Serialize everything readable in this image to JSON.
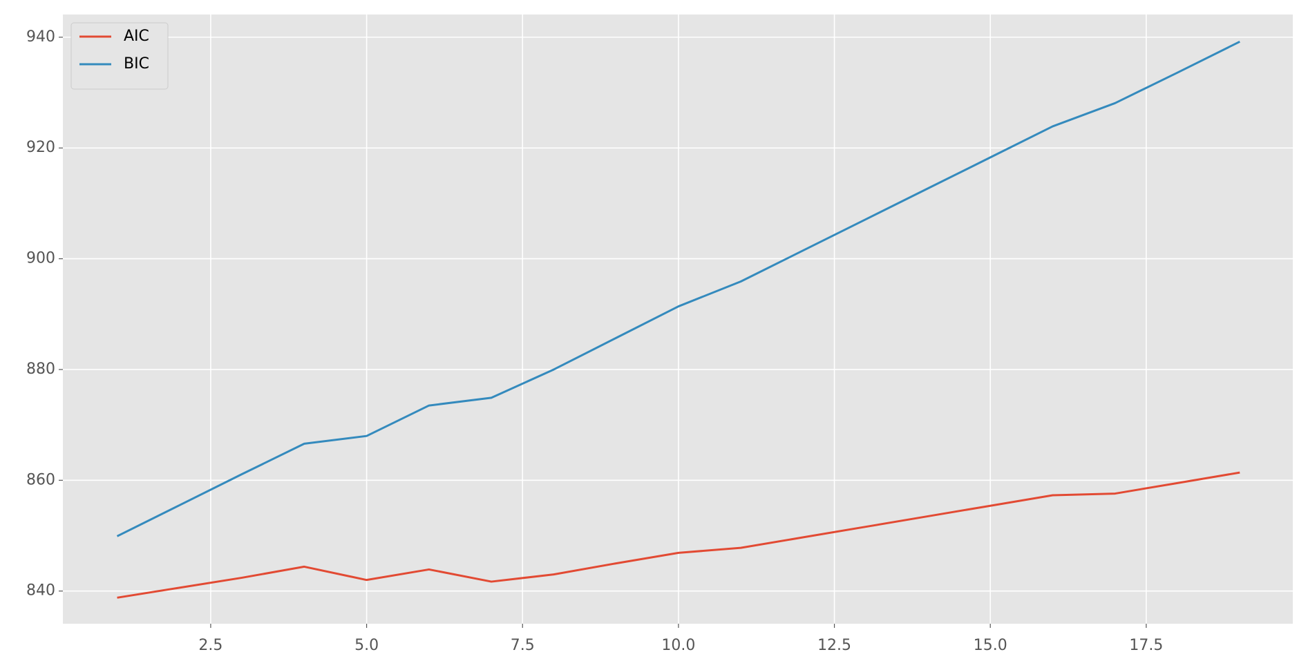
{
  "chart_data": {
    "type": "line",
    "x": [
      1,
      2,
      3,
      4,
      5,
      6,
      7,
      8,
      9,
      10,
      11,
      12,
      13,
      14,
      15,
      16,
      17,
      18,
      19
    ],
    "series": [
      {
        "name": "AIC",
        "color": "#E24A33",
        "values": [
          838.8,
          840.6,
          842.4,
          844.4,
          842.0,
          843.9,
          841.7,
          843.0,
          845.0,
          846.9,
          847.8,
          849.7,
          851.6,
          853.5,
          855.4,
          857.3,
          857.6,
          859.5,
          861.4
        ]
      },
      {
        "name": "BIC",
        "color": "#348ABD",
        "values": [
          849.9,
          855.5,
          861.1,
          866.6,
          868.0,
          873.5,
          874.9,
          880.0,
          885.7,
          891.4,
          895.9,
          901.5,
          907.1,
          912.7,
          918.3,
          923.9,
          928.1,
          933.6,
          939.2
        ]
      }
    ],
    "xlim": [
      0.13,
      19.85
    ],
    "ylim": [
      834.1,
      944.1
    ],
    "xticks": [
      2.5,
      {
        "value": 5,
        "label": "5.0"
      },
      7.5,
      {
        "value": 10,
        "label": "10.0"
      },
      12.5,
      {
        "value": 15,
        "label": "15.0"
      },
      17.5
    ],
    "yticks": [
      840,
      860,
      880,
      900,
      920,
      940
    ],
    "grid": true,
    "legend": "upper left"
  }
}
